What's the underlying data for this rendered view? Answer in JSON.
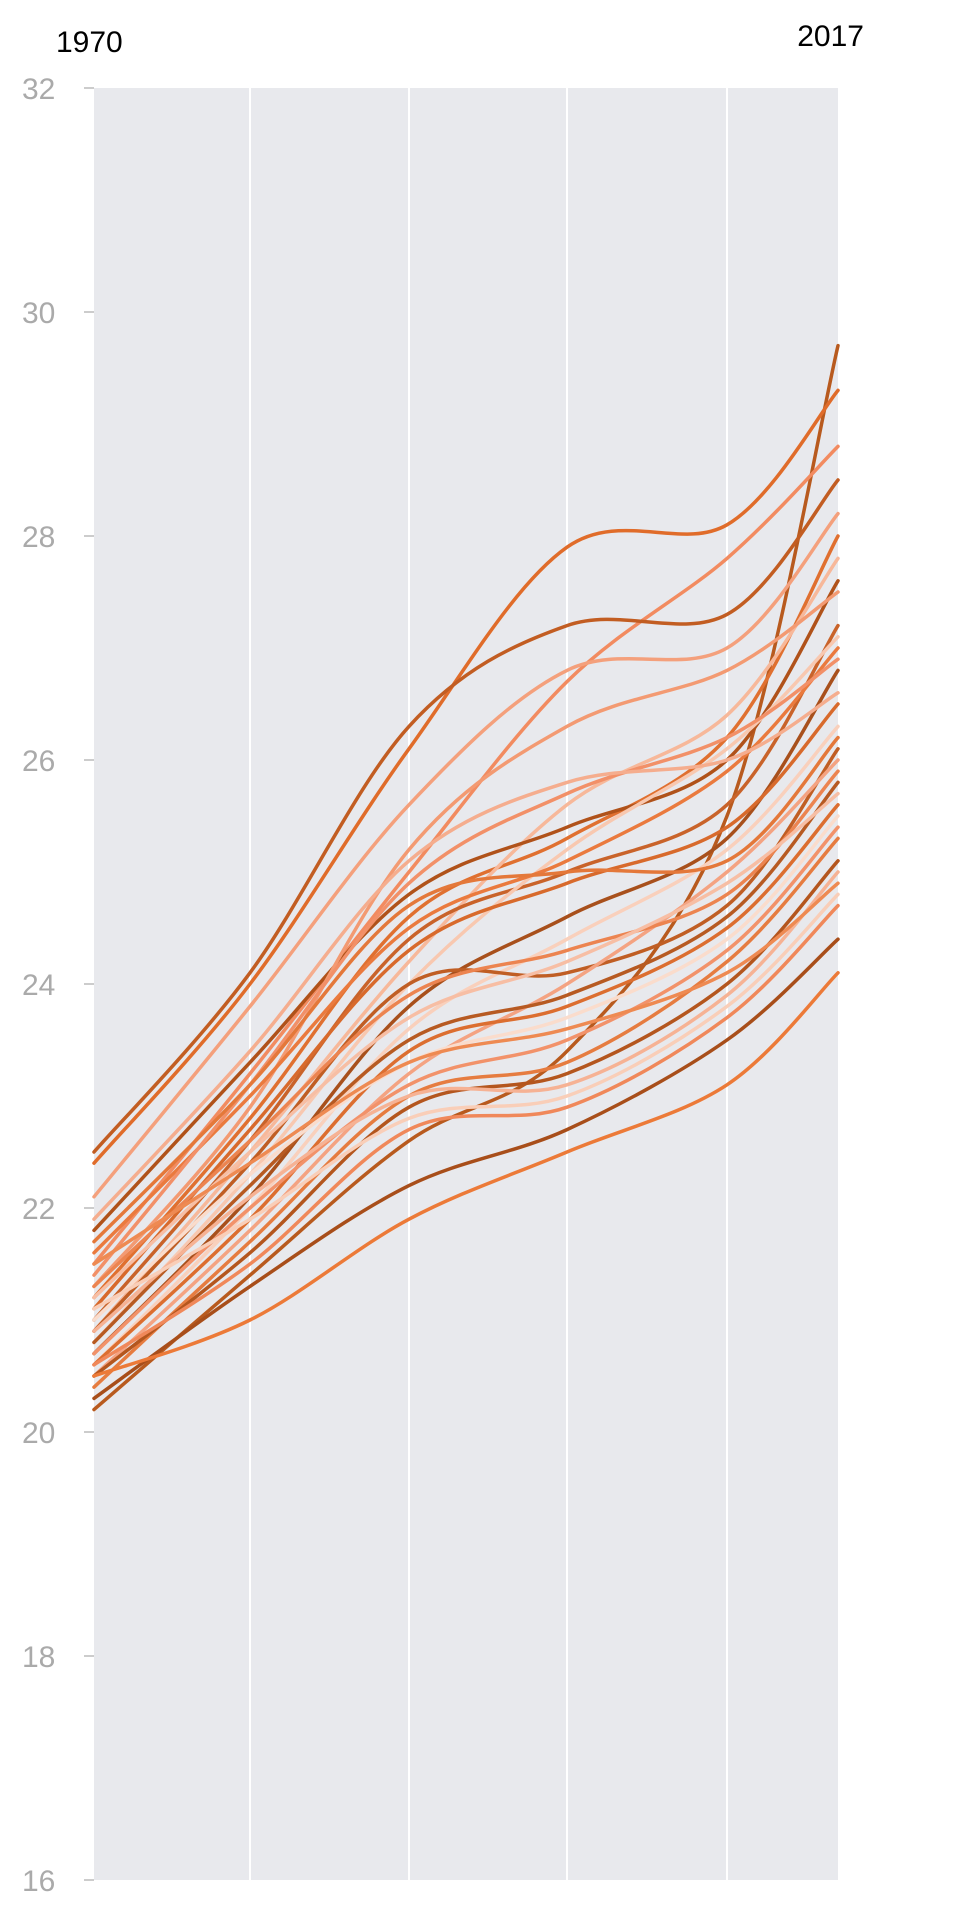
{
  "chart_data": {
    "type": "line",
    "title": "",
    "xlabel": "",
    "ylabel": "",
    "x_start_label": "1970",
    "x_end_label": "2017",
    "x": [
      1970,
      1980,
      1990,
      2000,
      2010,
      2017
    ],
    "ylim": [
      16,
      32
    ],
    "yticks": [
      16,
      18,
      20,
      22,
      24,
      26,
      28,
      30,
      32
    ],
    "grid": true,
    "legend": "none",
    "colors": {
      "background": "#e8e9ed",
      "grid": "#ffffff",
      "tick_text": "#aaaaaa"
    },
    "series": [
      {
        "color": "#b85a1e",
        "values": [
          20.2,
          21.4,
          22.6,
          23.4,
          25.5,
          29.7
        ]
      },
      {
        "color": "#e06c2a",
        "values": [
          22.4,
          24.0,
          26.1,
          27.9,
          28.1,
          29.3
        ]
      },
      {
        "color": "#f28b60",
        "values": [
          21.5,
          23.2,
          25.0,
          26.7,
          27.8,
          28.8
        ]
      },
      {
        "color": "#c25d22",
        "values": [
          22.5,
          24.1,
          26.3,
          27.2,
          27.3,
          28.5
        ]
      },
      {
        "color": "#f4a07c",
        "values": [
          22.1,
          23.8,
          25.6,
          26.8,
          27.0,
          28.2
        ]
      },
      {
        "color": "#e07030",
        "values": [
          21.2,
          22.8,
          24.6,
          25.3,
          26.2,
          28.0
        ]
      },
      {
        "color": "#f7b89a",
        "values": [
          20.9,
          22.5,
          24.2,
          25.6,
          26.4,
          27.8
        ]
      },
      {
        "color": "#b0521a",
        "values": [
          21.8,
          23.3,
          24.8,
          25.4,
          26.0,
          27.6
        ]
      },
      {
        "color": "#f39a72",
        "values": [
          21.3,
          22.9,
          25.2,
          26.3,
          26.8,
          27.5
        ]
      },
      {
        "color": "#c9632a",
        "values": [
          21.0,
          22.6,
          24.4,
          25.0,
          25.6,
          27.2
        ]
      },
      {
        "color": "#f8c8b0",
        "values": [
          20.8,
          22.3,
          24.0,
          25.2,
          26.1,
          27.1
        ]
      },
      {
        "color": "#ea7a3e",
        "values": [
          21.6,
          23.0,
          24.5,
          25.1,
          25.9,
          27.0
        ]
      },
      {
        "color": "#f29068",
        "values": [
          21.4,
          23.1,
          24.9,
          25.7,
          26.2,
          26.9
        ]
      },
      {
        "color": "#a8501c",
        "values": [
          20.7,
          22.1,
          23.8,
          24.6,
          25.3,
          26.8
        ]
      },
      {
        "color": "#f5ad8e",
        "values": [
          21.9,
          23.4,
          25.1,
          25.8,
          26.0,
          26.6
        ]
      },
      {
        "color": "#d86a2c",
        "values": [
          21.1,
          22.7,
          24.3,
          24.9,
          25.4,
          26.5
        ]
      },
      {
        "color": "#f9d0bc",
        "values": [
          20.6,
          22.0,
          23.6,
          24.4,
          25.2,
          26.3
        ]
      },
      {
        "color": "#e4783a",
        "values": [
          21.7,
          23.1,
          24.7,
          25.0,
          25.1,
          26.2
        ]
      },
      {
        "color": "#c05e24",
        "values": [
          20.9,
          22.4,
          24.0,
          24.1,
          24.7,
          26.1
        ]
      },
      {
        "color": "#f4a382",
        "values": [
          20.5,
          21.8,
          23.2,
          24.0,
          25.0,
          26.0
        ]
      },
      {
        "color": "#ec8450",
        "values": [
          21.3,
          22.6,
          23.9,
          24.3,
          24.8,
          25.9
        ]
      },
      {
        "color": "#b75a22",
        "values": [
          20.8,
          22.2,
          23.5,
          23.9,
          24.6,
          25.8
        ]
      },
      {
        "color": "#f7bea4",
        "values": [
          21.2,
          22.5,
          23.7,
          24.2,
          24.9,
          25.7
        ]
      },
      {
        "color": "#dc6e30",
        "values": [
          20.6,
          21.9,
          23.4,
          23.8,
          24.5,
          25.6
        ]
      },
      {
        "color": "#fadccc",
        "values": [
          21.0,
          22.3,
          23.3,
          23.7,
          24.4,
          25.5
        ]
      },
      {
        "color": "#f2926a",
        "values": [
          20.7,
          22.0,
          23.1,
          23.5,
          24.3,
          25.4
        ]
      },
      {
        "color": "#e67c40",
        "values": [
          20.4,
          21.7,
          23.0,
          23.3,
          24.2,
          25.3
        ]
      },
      {
        "color": "#b4561e",
        "values": [
          20.5,
          21.6,
          22.9,
          23.2,
          24.0,
          25.1
        ]
      },
      {
        "color": "#f6b294",
        "values": [
          20.9,
          22.1,
          23.0,
          23.1,
          23.9,
          25.0
        ]
      },
      {
        "color": "#ee8a52",
        "values": [
          21.5,
          22.4,
          23.3,
          23.6,
          24.1,
          24.9
        ]
      },
      {
        "color": "#f9ceb8",
        "values": [
          21.1,
          21.9,
          22.8,
          23.0,
          23.8,
          24.8
        ]
      },
      {
        "color": "#f0885a",
        "values": [
          20.6,
          21.5,
          22.7,
          22.9,
          23.7,
          24.7
        ]
      },
      {
        "color": "#a84e1a",
        "values": [
          20.3,
          21.3,
          22.2,
          22.7,
          23.5,
          24.4
        ]
      },
      {
        "color": "#ec7a38",
        "values": [
          20.5,
          21.0,
          21.9,
          22.5,
          23.1,
          24.1
        ]
      }
    ]
  }
}
